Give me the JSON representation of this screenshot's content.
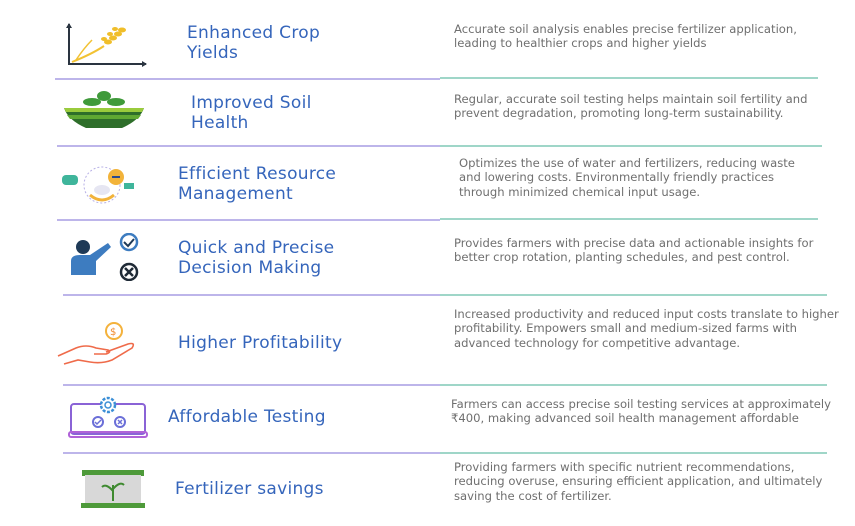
{
  "benefits": [
    {
      "title_lines": [
        "Enhanced Crop",
        "Yields"
      ],
      "description": "Accurate soil analysis enables precise fertilizer application, leading to healthier crops and higher yields",
      "icon": "wheat-growth-chart-icon"
    },
    {
      "title_lines": [
        "Improved Soil",
        "Health"
      ],
      "description": "Regular, accurate soil testing helps maintain soil fertility and prevent degradation, promoting long-term sustainability.",
      "icon": "soil-sprout-icon"
    },
    {
      "title_lines": [
        "Efficient Resource",
        "Management"
      ],
      "description": "Optimizes the use of water and fertilizers, reducing waste and lowering costs. Environmentally friendly practices through minimized chemical input usage.",
      "icon": "resource-management-icon"
    },
    {
      "title_lines": [
        "Quick and Precise",
        "Decision Making"
      ],
      "description": "Provides farmers with precise data and actionable insights for better crop rotation, planting schedules, and pest control.",
      "icon": "decision-check-cross-icon"
    },
    {
      "title_lines": [
        "Higher Profitability"
      ],
      "description": "Increased productivity and reduced input costs translate to higher profitability. Empowers small and medium-sized farms with advanced technology for competitive advantage.",
      "icon": "hand-coin-icon"
    },
    {
      "title_lines": [
        "Affordable Testing"
      ],
      "description": "Farmers can access precise soil testing services at approximately ₹400, making advanced soil health management affordable",
      "icon": "laptop-gear-icon"
    },
    {
      "title_lines": [
        "Fertilizer savings"
      ],
      "description": "Providing farmers with specific nutrient recommendations, reducing overuse, ensuring efficient application, and ultimately saving the cost of fertilizer.",
      "icon": "fertilizer-bag-icon"
    }
  ],
  "fertilizer_bag_label": "FERTILIZER",
  "colors": {
    "title": "#3565bb",
    "description": "#6f6f6f",
    "divider_left": "#bdb5ea",
    "divider_right": "#9fd6c8"
  }
}
